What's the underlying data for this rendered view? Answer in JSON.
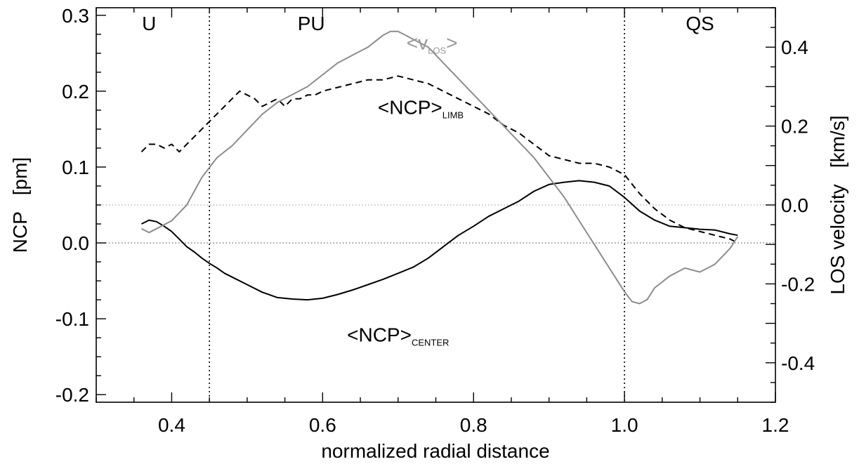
{
  "chart_data": {
    "type": "line",
    "xlabel": "normalized radial distance",
    "ylabel": "NCP   [pm]",
    "y2label": "LOS velocity   [km/s]",
    "xlim": [
      0.3,
      1.2
    ],
    "ylim": [
      -0.21,
      0.31
    ],
    "y2lim": [
      -0.5,
      0.5
    ],
    "x_ticks": [
      0.4,
      0.6,
      0.8,
      1.0,
      1.2
    ],
    "x_tick_labels": [
      "0.4",
      "0.6",
      "0.8",
      "1.0",
      "1.2"
    ],
    "y_ticks": [
      -0.2,
      -0.1,
      0.0,
      0.1,
      0.2,
      0.3
    ],
    "y_tick_labels": [
      "-0.2",
      "-0.1",
      "0.0",
      "0.1",
      "0.2",
      "0.3"
    ],
    "y2_ticks": [
      -0.4,
      -0.2,
      0.0,
      0.2,
      0.4
    ],
    "y2_tick_labels": [
      "-0.4",
      "-0.2",
      "0.0",
      "0.2",
      "0.4"
    ],
    "vlines": [
      0.45,
      1.0
    ],
    "hline_left_zero": 0.0,
    "hline_right_zero": 0.0,
    "regions": [
      {
        "text": "U",
        "x": 0.37
      },
      {
        "text": "PU",
        "x": 0.585
      },
      {
        "text": "QS",
        "x": 1.1
      }
    ],
    "annotations": [
      {
        "text": "<NCP>",
        "sub": "LIMB",
        "x": 0.73,
        "y": 0.17
      },
      {
        "text": "<NCP>",
        "sub": "CENTER",
        "x": 0.7,
        "y": -0.13
      },
      {
        "text": "<v",
        "sub": "LOS",
        "suffix": ">",
        "x": 0.745,
        "y": 0.255,
        "color": "#999999"
      }
    ],
    "series": [
      {
        "axis": "left",
        "style": "dashed",
        "color": "#000000",
        "x": [
          0.36,
          0.37,
          0.38,
          0.39,
          0.4,
          0.41,
          0.42,
          0.43,
          0.44,
          0.45,
          0.46,
          0.47,
          0.48,
          0.49,
          0.5,
          0.51,
          0.52,
          0.53,
          0.54,
          0.55,
          0.56,
          0.57,
          0.58,
          0.59,
          0.6,
          0.62,
          0.64,
          0.66,
          0.68,
          0.7,
          0.72,
          0.74,
          0.76,
          0.78,
          0.8,
          0.82,
          0.84,
          0.86,
          0.88,
          0.9,
          0.92,
          0.94,
          0.96,
          0.98,
          1.0,
          1.02,
          1.04,
          1.06,
          1.08,
          1.1,
          1.12,
          1.14,
          1.15
        ],
        "y": [
          0.12,
          0.13,
          0.13,
          0.125,
          0.13,
          0.12,
          0.13,
          0.14,
          0.15,
          0.16,
          0.17,
          0.18,
          0.19,
          0.2,
          0.195,
          0.19,
          0.18,
          0.185,
          0.19,
          0.18,
          0.19,
          0.19,
          0.195,
          0.195,
          0.2,
          0.205,
          0.21,
          0.215,
          0.215,
          0.22,
          0.215,
          0.21,
          0.2,
          0.19,
          0.18,
          0.17,
          0.155,
          0.145,
          0.13,
          0.115,
          0.11,
          0.105,
          0.105,
          0.1,
          0.09,
          0.065,
          0.045,
          0.03,
          0.02,
          0.015,
          0.01,
          0.005,
          0.0
        ]
      },
      {
        "axis": "left",
        "style": "solid",
        "color": "#000000",
        "x": [
          0.36,
          0.37,
          0.38,
          0.39,
          0.4,
          0.41,
          0.42,
          0.43,
          0.44,
          0.45,
          0.46,
          0.47,
          0.48,
          0.5,
          0.52,
          0.54,
          0.56,
          0.58,
          0.6,
          0.62,
          0.64,
          0.66,
          0.68,
          0.7,
          0.72,
          0.74,
          0.76,
          0.78,
          0.8,
          0.82,
          0.84,
          0.86,
          0.88,
          0.9,
          0.92,
          0.94,
          0.96,
          0.98,
          1.0,
          1.02,
          1.04,
          1.06,
          1.08,
          1.1,
          1.12,
          1.14,
          1.15
        ],
        "y": [
          0.025,
          0.03,
          0.028,
          0.022,
          0.015,
          0.005,
          -0.005,
          -0.012,
          -0.02,
          -0.027,
          -0.033,
          -0.04,
          -0.045,
          -0.055,
          -0.065,
          -0.072,
          -0.074,
          -0.075,
          -0.073,
          -0.068,
          -0.062,
          -0.055,
          -0.048,
          -0.04,
          -0.032,
          -0.02,
          -0.005,
          0.01,
          0.022,
          0.035,
          0.045,
          0.055,
          0.068,
          0.077,
          0.08,
          0.082,
          0.08,
          0.075,
          0.06,
          0.042,
          0.03,
          0.022,
          0.02,
          0.018,
          0.017,
          0.012,
          0.01
        ]
      },
      {
        "axis": "right",
        "style": "solid",
        "color": "#8c8c8c",
        "x": [
          0.36,
          0.37,
          0.38,
          0.4,
          0.42,
          0.44,
          0.46,
          0.48,
          0.5,
          0.52,
          0.54,
          0.56,
          0.58,
          0.6,
          0.62,
          0.64,
          0.66,
          0.68,
          0.69,
          0.7,
          0.71,
          0.72,
          0.74,
          0.76,
          0.78,
          0.8,
          0.82,
          0.84,
          0.86,
          0.88,
          0.9,
          0.92,
          0.94,
          0.96,
          0.98,
          1.0,
          1.01,
          1.02,
          1.03,
          1.04,
          1.06,
          1.08,
          1.1,
          1.12,
          1.14,
          1.15
        ],
        "y": [
          -0.06,
          -0.07,
          -0.06,
          -0.04,
          0.0,
          0.07,
          0.12,
          0.15,
          0.19,
          0.23,
          0.26,
          0.28,
          0.3,
          0.33,
          0.36,
          0.38,
          0.4,
          0.43,
          0.44,
          0.44,
          0.43,
          0.42,
          0.4,
          0.36,
          0.32,
          0.28,
          0.24,
          0.2,
          0.16,
          0.12,
          0.07,
          0.02,
          -0.04,
          -0.1,
          -0.16,
          -0.22,
          -0.245,
          -0.25,
          -0.24,
          -0.21,
          -0.18,
          -0.16,
          -0.17,
          -0.15,
          -0.11,
          -0.08
        ]
      }
    ]
  }
}
